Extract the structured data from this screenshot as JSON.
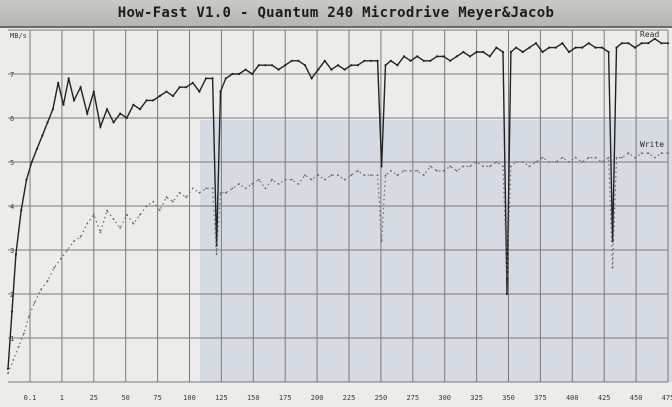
{
  "window": {
    "title": "How-Fast V1.0 - Quantum 240 Microdrive Meyer&Jacob"
  },
  "chart_data": {
    "type": "line",
    "title": "",
    "xlabel": "",
    "ylabel": "",
    "y_unit": "MB/s",
    "xlim": [
      0,
      500
    ],
    "ylim": [
      0,
      8
    ],
    "grid": true,
    "x_ticks": [
      "0.1",
      "1",
      "25",
      "50",
      "75",
      "100",
      "125",
      "150",
      "175",
      "200",
      "225",
      "250",
      "275",
      "300",
      "325",
      "350",
      "375",
      "400",
      "425",
      "450",
      "475"
    ],
    "y_ticks": [
      "1",
      "2",
      "3",
      "4",
      "5",
      "6",
      "7"
    ],
    "series": [
      {
        "name": "Read",
        "color": "#222222",
        "style": "solid",
        "x": [
          0,
          3,
          6,
          10,
          14,
          18,
          22,
          26,
          30,
          34,
          38,
          42,
          46,
          50,
          55,
          60,
          65,
          70,
          75,
          80,
          85,
          90,
          95,
          100,
          105,
          110,
          115,
          120,
          125,
          130,
          135,
          140,
          145,
          150,
          155,
          158,
          161,
          165,
          170,
          175,
          180,
          185,
          190,
          195,
          200,
          205,
          210,
          215,
          220,
          225,
          230,
          235,
          240,
          245,
          250,
          255,
          260,
          265,
          270,
          275,
          280,
          283,
          286,
          290,
          295,
          300,
          305,
          310,
          315,
          320,
          325,
          330,
          335,
          340,
          345,
          350,
          355,
          360,
          365,
          370,
          375,
          378,
          381,
          385,
          390,
          395,
          400,
          405,
          410,
          415,
          420,
          425,
          430,
          435,
          440,
          445,
          450,
          455,
          458,
          461,
          465,
          470,
          475,
          480,
          485,
          490,
          495,
          500
        ],
        "y": [
          0.3,
          1.6,
          2.9,
          3.9,
          4.6,
          5.0,
          5.3,
          5.6,
          5.9,
          6.2,
          6.8,
          6.3,
          6.9,
          6.4,
          6.7,
          6.1,
          6.6,
          5.8,
          6.2,
          5.9,
          6.1,
          6.0,
          6.3,
          6.2,
          6.4,
          6.4,
          6.5,
          6.6,
          6.5,
          6.7,
          6.7,
          6.8,
          6.6,
          6.9,
          6.9,
          3.1,
          6.6,
          6.9,
          7.0,
          7.0,
          7.1,
          7.0,
          7.2,
          7.2,
          7.2,
          7.1,
          7.2,
          7.3,
          7.3,
          7.2,
          6.9,
          7.1,
          7.3,
          7.1,
          7.2,
          7.1,
          7.2,
          7.2,
          7.3,
          7.3,
          7.3,
          4.9,
          7.2,
          7.3,
          7.2,
          7.4,
          7.3,
          7.4,
          7.3,
          7.3,
          7.4,
          7.4,
          7.3,
          7.4,
          7.5,
          7.4,
          7.5,
          7.5,
          7.4,
          7.6,
          7.5,
          2.0,
          7.5,
          7.6,
          7.5,
          7.6,
          7.7,
          7.5,
          7.6,
          7.6,
          7.7,
          7.5,
          7.6,
          7.6,
          7.7,
          7.6,
          7.6,
          7.5,
          3.2,
          7.6,
          7.7,
          7.7,
          7.6,
          7.7,
          7.7,
          7.8,
          7.7,
          7.7
        ]
      },
      {
        "name": "Write",
        "color": "#6a6a6a",
        "style": "dotted",
        "x": [
          0,
          4,
          8,
          12,
          16,
          20,
          25,
          30,
          35,
          40,
          45,
          50,
          55,
          60,
          65,
          70,
          75,
          80,
          85,
          90,
          95,
          100,
          105,
          110,
          115,
          120,
          125,
          130,
          135,
          140,
          145,
          150,
          155,
          158,
          161,
          165,
          170,
          175,
          180,
          185,
          190,
          195,
          200,
          205,
          210,
          215,
          220,
          225,
          230,
          235,
          240,
          245,
          250,
          255,
          260,
          265,
          270,
          275,
          280,
          283,
          286,
          290,
          295,
          300,
          305,
          310,
          315,
          320,
          325,
          330,
          335,
          340,
          345,
          350,
          355,
          360,
          365,
          370,
          375,
          378,
          381,
          385,
          390,
          395,
          400,
          405,
          410,
          415,
          420,
          425,
          430,
          435,
          440,
          445,
          450,
          455,
          458,
          461,
          465,
          470,
          475,
          480,
          485,
          490,
          495,
          500
        ],
        "y": [
          0.2,
          0.5,
          0.8,
          1.1,
          1.5,
          1.8,
          2.1,
          2.3,
          2.6,
          2.8,
          3.0,
          3.2,
          3.3,
          3.6,
          3.8,
          3.4,
          3.9,
          3.7,
          3.5,
          3.8,
          3.6,
          3.8,
          4.0,
          4.1,
          3.9,
          4.2,
          4.1,
          4.3,
          4.2,
          4.4,
          4.3,
          4.4,
          4.4,
          2.9,
          4.3,
          4.3,
          4.4,
          4.5,
          4.4,
          4.5,
          4.6,
          4.4,
          4.6,
          4.5,
          4.6,
          4.6,
          4.5,
          4.7,
          4.6,
          4.7,
          4.6,
          4.7,
          4.7,
          4.6,
          4.7,
          4.8,
          4.7,
          4.7,
          4.7,
          3.2,
          4.7,
          4.8,
          4.7,
          4.8,
          4.8,
          4.8,
          4.7,
          4.9,
          4.8,
          4.8,
          4.9,
          4.8,
          4.9,
          4.9,
          5.0,
          4.9,
          4.9,
          5.0,
          4.9,
          2.4,
          4.9,
          5.0,
          5.0,
          4.9,
          5.0,
          5.1,
          5.0,
          5.0,
          5.1,
          5.0,
          5.1,
          5.0,
          5.1,
          5.1,
          5.0,
          5.1,
          2.6,
          5.1,
          5.1,
          5.2,
          5.1,
          5.2,
          5.2,
          5.1,
          5.2,
          5.2
        ]
      }
    ],
    "series_labels": [
      "Read",
      "Write"
    ]
  }
}
